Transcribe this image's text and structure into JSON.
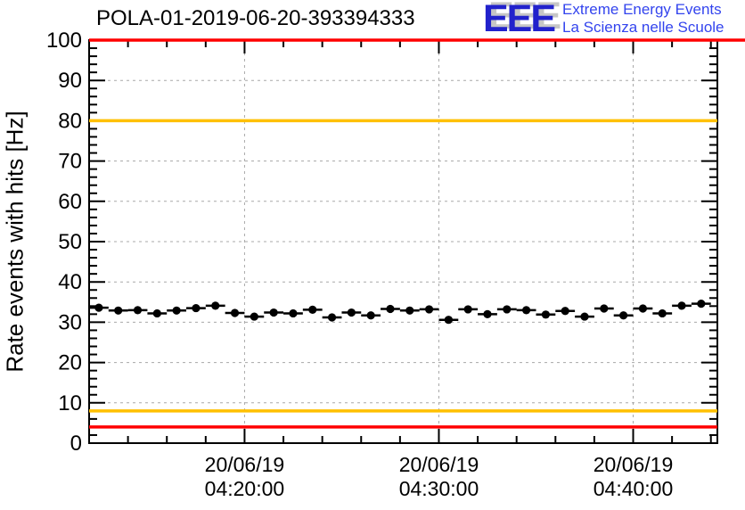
{
  "header": {
    "title": "POLA-01-2019-06-20-393394333",
    "logo": {
      "acronym": "EEE",
      "line1": "Extreme Energy Events",
      "line2": "La Scienza nelle Scuole",
      "acronym_color": "#2222cc",
      "text_color": "#3344ee"
    }
  },
  "chart_data": {
    "type": "scatter",
    "title": "POLA-01-2019-06-20-393394333",
    "xlabel": "",
    "ylabel": "Rate events with hits [Hz]",
    "ylim": [
      0,
      100
    ],
    "y_major_tick_step": 10,
    "y_minor_tick_step": 2,
    "y_tick_labels": [
      "0",
      "10",
      "20",
      "30",
      "40",
      "50",
      "60",
      "70",
      "80",
      "90",
      "100"
    ],
    "grid": {
      "show": true,
      "color": "#a8a8a8",
      "dash": "3,4"
    },
    "frame_color": "#000000",
    "x_axis": {
      "start_time": "04:12:00",
      "end_time": "04:44:20",
      "minor_tick_step_seconds": 120,
      "major_ticks": [
        {
          "time": "04:20:00",
          "label_line1": "20/06/19",
          "label_line2": "04:20:00"
        },
        {
          "time": "04:30:00",
          "label_line1": "20/06/19",
          "label_line2": "04:30:00"
        },
        {
          "time": "04:40:00",
          "label_line1": "20/06/19",
          "label_line2": "04:40:00"
        }
      ]
    },
    "reference_lines": [
      {
        "y": 100,
        "color": "#ff0000",
        "extends_past_frame_right": true
      },
      {
        "y": 80,
        "color": "#ffc000",
        "extends_past_frame_right": false
      },
      {
        "y": 8,
        "color": "#ffc000",
        "extends_past_frame_right": false
      },
      {
        "y": 4,
        "color": "#ff0000",
        "extends_past_frame_right": false
      }
    ],
    "series": [
      {
        "name": "rate_events_with_hits",
        "marker": "filled-circle",
        "color": "#000000",
        "bin_halfwidth_seconds": 30,
        "y_error_hz": 0.8,
        "times": [
          "04:12:30",
          "04:13:30",
          "04:14:30",
          "04:15:30",
          "04:16:30",
          "04:17:30",
          "04:18:30",
          "04:19:30",
          "04:20:30",
          "04:21:30",
          "04:22:30",
          "04:23:30",
          "04:24:30",
          "04:25:30",
          "04:26:30",
          "04:27:30",
          "04:28:30",
          "04:29:30",
          "04:30:30",
          "04:31:30",
          "04:32:30",
          "04:33:30",
          "04:34:30",
          "04:35:30",
          "04:36:30",
          "04:37:30",
          "04:38:30",
          "04:39:30",
          "04:40:30",
          "04:41:30",
          "04:42:30",
          "04:43:30"
        ],
        "values": [
          33.6,
          32.9,
          33.0,
          32.2,
          32.9,
          33.5,
          34.1,
          32.3,
          31.4,
          32.4,
          32.2,
          33.1,
          31.2,
          32.4,
          31.7,
          33.3,
          32.9,
          33.2,
          30.6,
          33.2,
          32.0,
          33.2,
          33.0,
          31.9,
          32.8,
          31.4,
          33.4,
          31.7,
          33.4,
          32.2,
          34.1,
          34.6
        ]
      }
    ]
  }
}
